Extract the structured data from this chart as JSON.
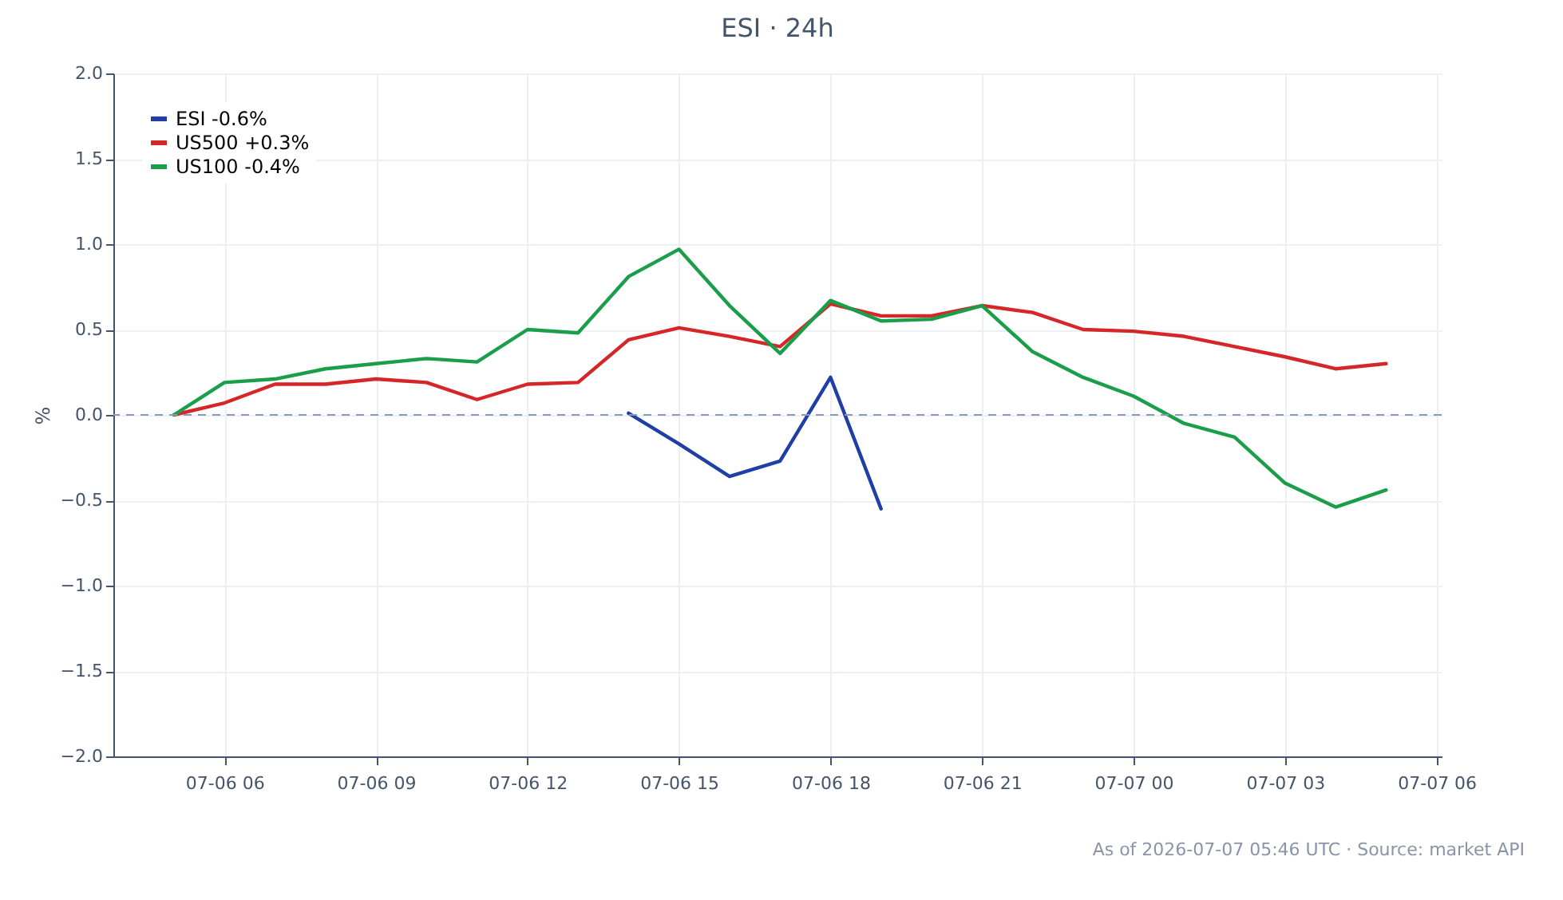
{
  "chart_data": {
    "type": "line",
    "title": "ESI · 24h",
    "ylabel": "%",
    "x": [
      "2026-07-06T05:00",
      "2026-07-06T06:00",
      "2026-07-06T07:00",
      "2026-07-06T08:00",
      "2026-07-06T09:00",
      "2026-07-06T10:00",
      "2026-07-06T11:00",
      "2026-07-06T12:00",
      "2026-07-06T13:00",
      "2026-07-06T14:00",
      "2026-07-06T15:00",
      "2026-07-06T16:00",
      "2026-07-06T17:00",
      "2026-07-06T18:00",
      "2026-07-06T19:00",
      "2026-07-06T20:00",
      "2026-07-06T21:00",
      "2026-07-06T22:00",
      "2026-07-06T23:00",
      "2026-07-07T00:00",
      "2026-07-07T01:00",
      "2026-07-07T02:00",
      "2026-07-07T03:00",
      "2026-07-07T04:00",
      "2026-07-07T05:00"
    ],
    "series": [
      {
        "name": "ESI -0.6%",
        "color": "#1f3fa6",
        "values": [
          null,
          null,
          null,
          null,
          null,
          null,
          null,
          null,
          null,
          0.01,
          -0.17,
          -0.36,
          -0.27,
          0.22,
          -0.55,
          null,
          null,
          null,
          null,
          null,
          null,
          null,
          null,
          null,
          null
        ]
      },
      {
        "name": "US500 +0.3%",
        "color": "#d62728",
        "values": [
          0,
          0.07,
          0.18,
          0.18,
          0.21,
          0.19,
          0.09,
          0.18,
          0.19,
          0.44,
          0.51,
          0.46,
          0.4,
          0.65,
          0.58,
          0.58,
          0.64,
          0.6,
          0.5,
          0.49,
          0.46,
          0.4,
          0.34,
          0.27,
          0.3
        ]
      },
      {
        "name": "US100 -0.4%",
        "color": "#1a9e4a",
        "values": [
          0,
          0.19,
          0.21,
          0.27,
          0.3,
          0.33,
          0.31,
          0.5,
          0.48,
          0.81,
          0.97,
          0.64,
          0.36,
          0.67,
          0.55,
          0.56,
          0.64,
          0.37,
          0.22,
          0.11,
          -0.05,
          -0.13,
          -0.4,
          -0.54,
          -0.44
        ]
      }
    ],
    "xlim": [
      "2026-07-06T03:48",
      "2026-07-07T06:06"
    ],
    "xticks": [
      {
        "value": "2026-07-06T06:00",
        "label": "07-06 06"
      },
      {
        "value": "2026-07-06T09:00",
        "label": "07-06 09"
      },
      {
        "value": "2026-07-06T12:00",
        "label": "07-06 12"
      },
      {
        "value": "2026-07-06T15:00",
        "label": "07-06 15"
      },
      {
        "value": "2026-07-06T18:00",
        "label": "07-06 18"
      },
      {
        "value": "2026-07-06T21:00",
        "label": "07-06 21"
      },
      {
        "value": "2026-07-07T00:00",
        "label": "07-07 00"
      },
      {
        "value": "2026-07-07T03:00",
        "label": "07-07 03"
      },
      {
        "value": "2026-07-07T06:00",
        "label": "07-07 06"
      }
    ],
    "ylim": [
      -2,
      2
    ],
    "yticks": [
      {
        "value": -2,
        "label": "−2.0"
      },
      {
        "value": -1.5,
        "label": "−1.5"
      },
      {
        "value": -1,
        "label": "−1.0"
      },
      {
        "value": -0.5,
        "label": "−0.5"
      },
      {
        "value": 0,
        "label": "0.0"
      },
      0.5,
      {
        "value": 1,
        "label": "1.0"
      },
      1.5,
      {
        "value": 2,
        "label": "2.0"
      }
    ],
    "ref_lines": [
      {
        "axis": "y",
        "value": 0,
        "color": "#8899bb",
        "line_style": "dashed"
      }
    ],
    "grid": true,
    "legend": "top left",
    "annotations": [
      "As of 2026-07-07 05:46 UTC · Source: market API"
    ]
  }
}
